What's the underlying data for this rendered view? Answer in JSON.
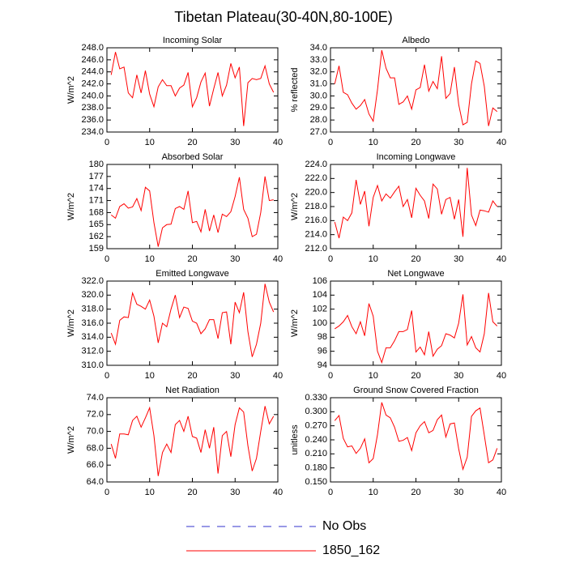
{
  "title": "Tibetan Plateau(30-40N,80-100E)",
  "legend": [
    {
      "name": "No Obs",
      "color": "#3333cc",
      "dashed": true
    },
    {
      "name": "1850_162",
      "color": "#ff0000",
      "dashed": false
    }
  ],
  "chart_data": [
    {
      "type": "line",
      "title": "Incoming Solar",
      "y_label": "W/m^2",
      "color": "#ff0000",
      "x": [
        1,
        2,
        3,
        4,
        5,
        6,
        7,
        8,
        9,
        10,
        11,
        12,
        13,
        14,
        15,
        16,
        17,
        18,
        19,
        20,
        21,
        22,
        23,
        24,
        25,
        26,
        27,
        28,
        29,
        30,
        31,
        32,
        33,
        34,
        35,
        36,
        37,
        38,
        39
      ],
      "values": [
        243.5,
        247.3,
        244.5,
        244.8,
        240.5,
        239.7,
        243.5,
        240.5,
        244.2,
        240.3,
        238.2,
        241.5,
        242.7,
        241.7,
        241.7,
        240.0,
        241.3,
        241.8,
        243.9,
        238.2,
        239.7,
        242.3,
        243.8,
        238.3,
        241.2,
        243.9,
        240.0,
        241.8,
        245.4,
        243.0,
        244.8,
        235.0,
        242.2,
        242.9,
        242.7,
        242.9,
        245.0,
        242.0,
        240.6
      ],
      "xlim": [
        0,
        40
      ],
      "xticks": [
        0,
        10,
        20,
        30,
        40
      ],
      "ylim": [
        234,
        248
      ],
      "yticks": [
        {
          "value": 234,
          "label": "234.0"
        },
        {
          "value": 236,
          "label": "236.0"
        },
        {
          "value": 238,
          "label": "238.0"
        },
        {
          "value": 240,
          "label": "240.0"
        },
        {
          "value": 242,
          "label": "242.0"
        },
        {
          "value": 244,
          "label": "244.0"
        },
        {
          "value": 246,
          "label": "246.0"
        },
        {
          "value": 248,
          "label": "248.0"
        }
      ]
    },
    {
      "type": "line",
      "title": "Albedo",
      "y_label": "% reflected",
      "color": "#ff0000",
      "x": [
        1,
        2,
        3,
        4,
        5,
        6,
        7,
        8,
        9,
        10,
        11,
        12,
        13,
        14,
        15,
        16,
        17,
        18,
        19,
        20,
        21,
        22,
        23,
        24,
        25,
        26,
        27,
        28,
        29,
        30,
        31,
        32,
        33,
        34,
        35,
        36,
        37,
        38,
        39
      ],
      "values": [
        31.0,
        32.5,
        30.3,
        30.1,
        29.4,
        28.9,
        29.2,
        29.7,
        28.5,
        27.9,
        30.5,
        33.8,
        32.3,
        31.5,
        31.5,
        29.3,
        29.5,
        30.0,
        28.9,
        30.5,
        30.7,
        32.6,
        30.4,
        31.2,
        30.6,
        33.3,
        29.8,
        30.2,
        32.4,
        29.3,
        27.6,
        27.8,
        31.0,
        32.9,
        32.7,
        30.8,
        27.5,
        29.0,
        28.7
      ],
      "xlim": [
        0,
        40
      ],
      "xticks": [
        0,
        10,
        20,
        30,
        40
      ],
      "ylim": [
        27,
        34
      ],
      "yticks": [
        {
          "value": 27,
          "label": "27.0"
        },
        {
          "value": 28,
          "label": "28.0"
        },
        {
          "value": 29,
          "label": "29.0"
        },
        {
          "value": 30,
          "label": "30.0"
        },
        {
          "value": 31,
          "label": "31.0"
        },
        {
          "value": 32,
          "label": "32.0"
        },
        {
          "value": 33,
          "label": "33.0"
        },
        {
          "value": 34,
          "label": "34.0"
        }
      ]
    },
    {
      "type": "line",
      "title": "Absorbed Solar",
      "y_label": "W/m^2",
      "color": "#ff0000",
      "x": [
        1,
        2,
        3,
        4,
        5,
        6,
        7,
        8,
        9,
        10,
        11,
        12,
        13,
        14,
        15,
        16,
        17,
        18,
        19,
        20,
        21,
        22,
        23,
        24,
        25,
        26,
        27,
        28,
        29,
        30,
        31,
        32,
        33,
        34,
        35,
        36,
        37,
        38,
        39
      ],
      "values": [
        167.4,
        166.6,
        169.5,
        170.2,
        169.1,
        169.4,
        171.5,
        168.5,
        174.3,
        173.4,
        165.5,
        159.5,
        164.2,
        165.0,
        165.1,
        169.0,
        169.5,
        168.8,
        173.4,
        165.5,
        165.8,
        163.2,
        168.8,
        163.4,
        167.4,
        163.0,
        167.6,
        167.0,
        168.2,
        172.0,
        176.8,
        168.8,
        166.6,
        162.0,
        162.6,
        168.0,
        177.0,
        171.0,
        171.2
      ],
      "xlim": [
        0,
        40
      ],
      "xticks": [
        0,
        10,
        20,
        30,
        40
      ],
      "ylim": [
        159,
        180
      ],
      "yticks": [
        159,
        162,
        165,
        168,
        171,
        174,
        177,
        180
      ]
    },
    {
      "type": "line",
      "title": "Incoming Longwave",
      "y_label": "W/m^2",
      "color": "#ff0000",
      "x": [
        1,
        2,
        3,
        4,
        5,
        6,
        7,
        8,
        9,
        10,
        11,
        12,
        13,
        14,
        15,
        16,
        17,
        18,
        19,
        20,
        21,
        22,
        23,
        24,
        25,
        26,
        27,
        28,
        29,
        30,
        31,
        32,
        33,
        34,
        35,
        36,
        37,
        38,
        39
      ],
      "values": [
        215.8,
        213.5,
        216.5,
        216.0,
        217.1,
        221.8,
        218.3,
        220.2,
        215.2,
        219.3,
        221.0,
        218.8,
        219.8,
        219.2,
        220.1,
        220.9,
        218.0,
        219.0,
        216.4,
        220.6,
        219.6,
        218.8,
        216.3,
        221.2,
        220.5,
        216.9,
        219.0,
        219.3,
        216.2,
        219.0,
        213.7,
        223.5,
        216.8,
        215.3,
        217.5,
        217.4,
        217.2,
        218.8,
        218.0
      ],
      "xlim": [
        0,
        40
      ],
      "xticks": [
        0,
        10,
        20,
        30,
        40
      ],
      "ylim": [
        212,
        224
      ],
      "yticks": [
        {
          "value": 212,
          "label": "212.0"
        },
        {
          "value": 214,
          "label": "214.0"
        },
        {
          "value": 216,
          "label": "216.0"
        },
        {
          "value": 218,
          "label": "218.0"
        },
        {
          "value": 220,
          "label": "220.0"
        },
        {
          "value": 222,
          "label": "222.0"
        },
        {
          "value": 224,
          "label": "224.0"
        }
      ]
    },
    {
      "type": "line",
      "title": "Emitted Longwave",
      "y_label": "W/m^2",
      "color": "#ff0000",
      "x": [
        1,
        2,
        3,
        4,
        5,
        6,
        7,
        8,
        9,
        10,
        11,
        12,
        13,
        14,
        15,
        16,
        17,
        18,
        19,
        20,
        21,
        22,
        23,
        24,
        25,
        26,
        27,
        28,
        29,
        30,
        31,
        32,
        33,
        34,
        35,
        36,
        37,
        38,
        39
      ],
      "values": [
        314.6,
        313.0,
        316.4,
        316.9,
        316.8,
        320.3,
        318.7,
        318.4,
        318.0,
        319.3,
        317.0,
        313.2,
        316.0,
        315.5,
        318.0,
        320.0,
        316.8,
        318.3,
        318.1,
        316.3,
        316.0,
        314.5,
        315.2,
        316.5,
        316.5,
        313.8,
        317.5,
        317.6,
        313.0,
        319.0,
        317.5,
        320.4,
        314.8,
        311.2,
        313.0,
        316.0,
        321.6,
        319.0,
        317.6
      ],
      "xlim": [
        0,
        40
      ],
      "xticks": [
        0,
        10,
        20,
        30,
        40
      ],
      "ylim": [
        310,
        322
      ],
      "yticks": [
        {
          "value": 310,
          "label": "310.0"
        },
        {
          "value": 312,
          "label": "312.0"
        },
        {
          "value": 314,
          "label": "314.0"
        },
        {
          "value": 316,
          "label": "316.0"
        },
        {
          "value": 318,
          "label": "318.0"
        },
        {
          "value": 320,
          "label": "320.0"
        },
        {
          "value": 322,
          "label": "322.0"
        }
      ]
    },
    {
      "type": "line",
      "title": "Net Longwave",
      "y_label": "W/m^2",
      "color": "#ff0000",
      "x": [
        1,
        2,
        3,
        4,
        5,
        6,
        7,
        8,
        9,
        10,
        11,
        12,
        13,
        14,
        15,
        16,
        17,
        18,
        19,
        20,
        21,
        22,
        23,
        24,
        25,
        26,
        27,
        28,
        29,
        30,
        31,
        32,
        33,
        34,
        35,
        36,
        37,
        38,
        39
      ],
      "values": [
        99.2,
        99.6,
        100.2,
        101.1,
        99.5,
        98.5,
        100.2,
        98.2,
        102.8,
        101.0,
        96.0,
        94.4,
        96.5,
        96.5,
        97.5,
        98.8,
        98.8,
        99.1,
        101.8,
        95.9,
        96.6,
        95.5,
        98.8,
        95.3,
        96.3,
        96.8,
        98.5,
        98.3,
        97.9,
        100.0,
        104.1,
        96.9,
        98.1,
        96.5,
        95.9,
        98.5,
        104.3,
        100.2,
        99.6
      ],
      "xlim": [
        0,
        40
      ],
      "xticks": [
        0,
        10,
        20,
        30,
        40
      ],
      "ylim": [
        94,
        106
      ],
      "yticks": [
        94,
        96,
        98,
        100,
        102,
        104,
        106
      ]
    },
    {
      "type": "line",
      "title": "Net Radiation",
      "y_label": "W/m^2",
      "color": "#ff0000",
      "x": [
        1,
        2,
        3,
        4,
        5,
        6,
        7,
        8,
        9,
        10,
        11,
        12,
        13,
        14,
        15,
        16,
        17,
        18,
        19,
        20,
        21,
        22,
        23,
        24,
        25,
        26,
        27,
        28,
        29,
        30,
        31,
        32,
        33,
        34,
        35,
        36,
        37,
        38,
        39
      ],
      "values": [
        68.5,
        66.8,
        69.7,
        69.7,
        69.6,
        71.3,
        71.8,
        70.5,
        71.6,
        72.8,
        69.5,
        64.7,
        67.5,
        68.5,
        67.5,
        70.8,
        71.3,
        70.0,
        71.8,
        69.4,
        69.2,
        67.5,
        70.2,
        68.0,
        70.5,
        65.0,
        69.5,
        70.0,
        67.0,
        70.8,
        72.8,
        72.3,
        68.3,
        65.3,
        66.8,
        70.0,
        73.0,
        70.9,
        71.8
      ],
      "xlim": [
        0,
        40
      ],
      "xticks": [
        0,
        10,
        20,
        30,
        40
      ],
      "ylim": [
        64,
        74
      ],
      "yticks": [
        {
          "value": 64,
          "label": "64.0"
        },
        {
          "value": 66,
          "label": "66.0"
        },
        {
          "value": 68,
          "label": "68.0"
        },
        {
          "value": 70,
          "label": "70.0"
        },
        {
          "value": 72,
          "label": "72.0"
        },
        {
          "value": 74,
          "label": "74.0"
        }
      ]
    },
    {
      "type": "line",
      "title": "Ground Snow Covered Fraction",
      "y_label": "unitless",
      "color": "#ff0000",
      "x": [
        1,
        2,
        3,
        4,
        5,
        6,
        7,
        8,
        9,
        10,
        11,
        12,
        13,
        14,
        15,
        16,
        17,
        18,
        19,
        20,
        21,
        22,
        23,
        24,
        25,
        26,
        27,
        28,
        29,
        30,
        31,
        32,
        33,
        34,
        35,
        36,
        37,
        38,
        39
      ],
      "values": [
        0.281,
        0.292,
        0.243,
        0.225,
        0.227,
        0.211,
        0.222,
        0.242,
        0.191,
        0.2,
        0.251,
        0.32,
        0.293,
        0.287,
        0.267,
        0.237,
        0.239,
        0.245,
        0.217,
        0.255,
        0.27,
        0.279,
        0.255,
        0.26,
        0.283,
        0.293,
        0.246,
        0.274,
        0.276,
        0.221,
        0.177,
        0.203,
        0.29,
        0.302,
        0.308,
        0.25,
        0.191,
        0.197,
        0.222
      ],
      "xlim": [
        0,
        40
      ],
      "xticks": [
        0,
        10,
        20,
        30,
        40
      ],
      "ylim": [
        0.15,
        0.33
      ],
      "yticks": [
        {
          "value": 0.15,
          "label": "0.150"
        },
        {
          "value": 0.18,
          "label": "0.180"
        },
        {
          "value": 0.21,
          "label": "0.210"
        },
        {
          "value": 0.24,
          "label": "0.240"
        },
        {
          "value": 0.27,
          "label": "0.270"
        },
        {
          "value": 0.3,
          "label": "0.300"
        },
        {
          "value": 0.33,
          "label": "0.330"
        }
      ]
    }
  ]
}
